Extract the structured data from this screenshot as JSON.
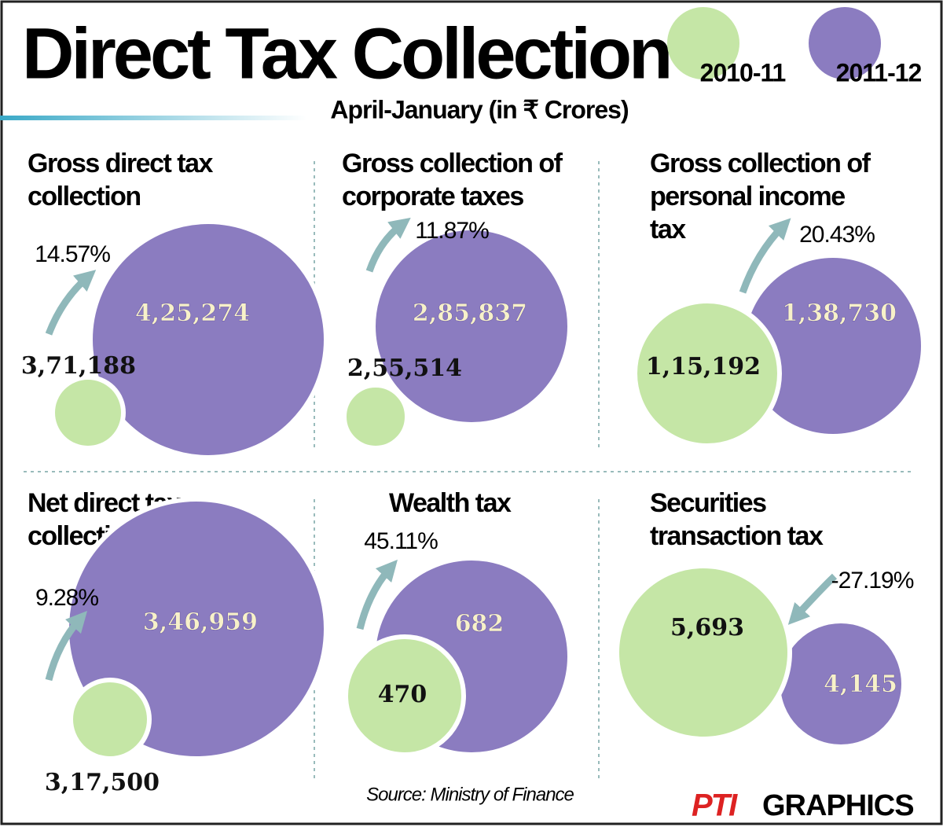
{
  "title": "Direct Tax Collection",
  "subtitle": "April-January (in ₹ Crores)",
  "legend": [
    {
      "name": "2010-11",
      "color": "#c5e6a6"
    },
    {
      "name": "2011-12",
      "color": "#8b7cc0"
    }
  ],
  "source": "Source: Ministry of Finance",
  "credit": {
    "logo": "PTI",
    "text": "GRAPHICS"
  },
  "chart_data": [
    {
      "type": "bubble",
      "title": [
        "Gross direct tax",
        "collection"
      ],
      "change": "14.57%",
      "direction": "up",
      "values": [
        371188,
        425274
      ],
      "value_labels": [
        "3,71,188",
        "4,25,274"
      ]
    },
    {
      "type": "bubble",
      "title": [
        "Gross collection of",
        "corporate taxes"
      ],
      "change": "11.87%",
      "direction": "up",
      "values": [
        255514,
        285837
      ],
      "value_labels": [
        "2,55,514",
        "2,85,837"
      ]
    },
    {
      "type": "bubble",
      "title": [
        "Gross collection of",
        "personal income",
        "tax"
      ],
      "change": "20.43%",
      "direction": "up",
      "values": [
        115192,
        138730
      ],
      "value_labels": [
        "1,15,192",
        "1,38,730"
      ]
    },
    {
      "type": "bubble",
      "title": [
        "Net direct tax",
        "collection"
      ],
      "change": "9.28%",
      "direction": "up",
      "values": [
        317500,
        346959
      ],
      "value_labels": [
        "3,17,500",
        "3,46,959"
      ]
    },
    {
      "type": "bubble",
      "title": [
        "Wealth tax"
      ],
      "change": "45.11%",
      "direction": "up",
      "values": [
        470,
        682
      ],
      "value_labels": [
        "470",
        "682"
      ]
    },
    {
      "type": "bubble",
      "title": [
        "Securities",
        "transaction tax"
      ],
      "change": "-27.19%",
      "direction": "down",
      "values": [
        5693,
        4145
      ],
      "value_labels": [
        "5,693",
        "4,145"
      ]
    }
  ]
}
